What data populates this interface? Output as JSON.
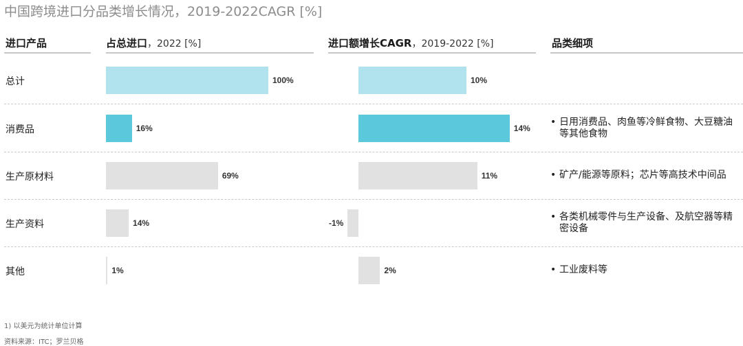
{
  "title": "中国跨境进口分品类增长情况，2019-2022CAGR [%]",
  "headers": {
    "product": "进口产品",
    "share_main": "占总进口",
    "share_sub": "，2022 [%]",
    "cagr_main": "进口额增长CAGR",
    "cagr_sub": "，2019-2022 [%]",
    "detail": "品类细项"
  },
  "colors": {
    "total": "#b1e3ef",
    "consumer": "#5bc8dc",
    "other": "#e1e1e1"
  },
  "chart_data": [
    {
      "type": "bar",
      "orientation": "horizontal",
      "title": "占总进口，2022 [%]",
      "categories": [
        "总计",
        "消费品",
        "生产原材料",
        "生产资料",
        "其他"
      ],
      "values": [
        100,
        16,
        69,
        14,
        1
      ],
      "value_labels": [
        "100%",
        "16%",
        "69%",
        "14%",
        "1%"
      ]
    },
    {
      "type": "bar",
      "orientation": "horizontal",
      "title": "进口额增长CAGR，2019-2022 [%]",
      "categories": [
        "总计",
        "消费品",
        "生产原材料",
        "生产资料",
        "其他"
      ],
      "values": [
        10,
        14,
        11,
        -1,
        2
      ],
      "value_labels": [
        "10%",
        "14%",
        "11%",
        "-1%",
        "2%"
      ]
    }
  ],
  "rows": [
    {
      "label": "总计",
      "detail": ""
    },
    {
      "label": "消费品",
      "detail": "日用消费品、肉鱼等冷鲜食物、大豆糖油等其他食物"
    },
    {
      "label": "生产原材料",
      "detail": "矿产/能源等原料；芯片等高技术中间品"
    },
    {
      "label": "生产资料",
      "detail": "各类机械零件与生产设备、及航空器等精密设备"
    },
    {
      "label": "其他",
      "detail": "工业废料等"
    }
  ],
  "bullet": "•",
  "footnotes": {
    "note": "1) 以美元为统计单位计算",
    "source": "资料来源：ITC；罗兰贝格"
  }
}
